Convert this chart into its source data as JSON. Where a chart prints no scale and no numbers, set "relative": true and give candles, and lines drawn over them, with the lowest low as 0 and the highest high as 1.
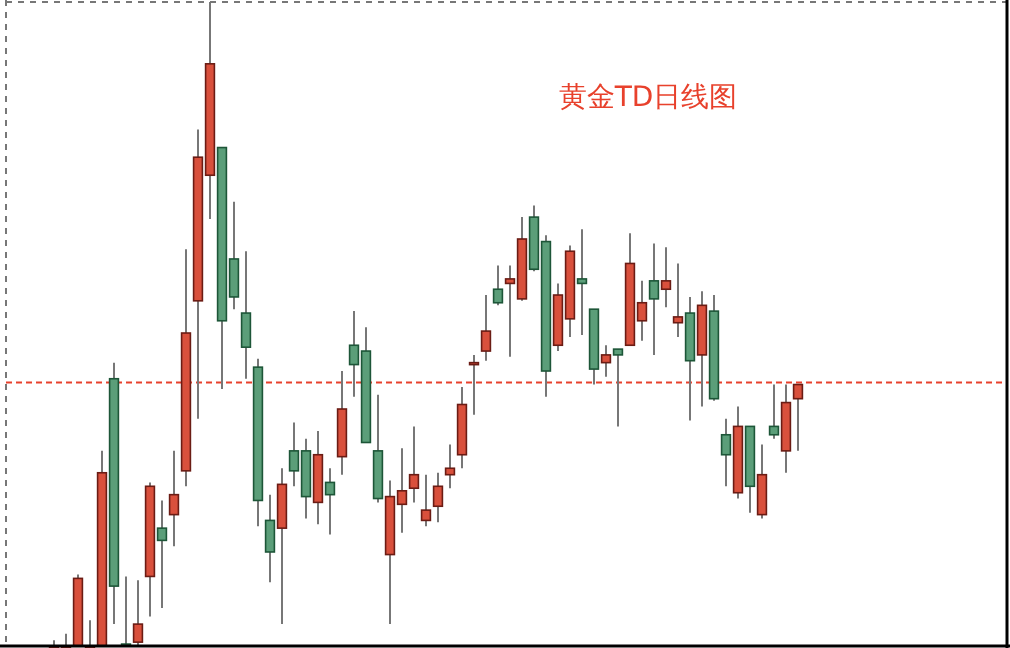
{
  "chart_data": {
    "type": "candlestick",
    "title": "黄金TD日线图",
    "relative": true,
    "categories": [
      null,
      null,
      null,
      null,
      null,
      null,
      null,
      null,
      null,
      null,
      null,
      null,
      null,
      null,
      null,
      null,
      null,
      null,
      null,
      null,
      null,
      null,
      null,
      null,
      null,
      null,
      null,
      null,
      null,
      null,
      null,
      null,
      null,
      null,
      null,
      null,
      null,
      null,
      null,
      null,
      null,
      null,
      null,
      null,
      null,
      null,
      null,
      null,
      null,
      null,
      null,
      null,
      null,
      null,
      null,
      null,
      null,
      null,
      null,
      null,
      null,
      null,
      null
    ],
    "ohlc": [
      [
        0,
        0.009,
        0,
        0
      ],
      [
        0,
        0.019,
        0,
        0
      ],
      [
        0,
        0.111,
        0,
        0.105
      ],
      [
        0,
        0.04,
        0,
        0
      ],
      [
        0,
        0.303,
        0,
        0.269
      ],
      [
        0.415,
        0.44,
        0.034,
        0.093
      ],
      [
        0.003,
        0.108,
        0,
        0
      ],
      [
        0.006,
        0.102,
        0,
        0.034
      ],
      [
        0.108,
        0.254,
        0.046,
        0.248
      ],
      [
        0.183,
        0.226,
        0.059,
        0.164
      ],
      [
        0.204,
        0.303,
        0.155,
        0.235
      ],
      [
        0.272,
        0.616,
        0.248,
        0.486
      ],
      [
        0.536,
        0.802,
        0.353,
        0.759
      ],
      [
        0.731,
        1.0,
        0.663,
        0.904
      ],
      [
        0.774,
        0.774,
        0.399,
        0.505
      ],
      [
        0.601,
        0.69,
        0.523,
        0.542
      ],
      [
        0.517,
        0.613,
        0.415,
        0.464
      ],
      [
        0.433,
        0.446,
        0.186,
        0.226
      ],
      [
        0.195,
        0.235,
        0.099,
        0.146
      ],
      [
        0.183,
        0.276,
        0.034,
        0.251
      ],
      [
        0.303,
        0.347,
        0.248,
        0.272
      ],
      [
        0.303,
        0.322,
        0.198,
        0.232
      ],
      [
        0.223,
        0.334,
        0.189,
        0.297
      ],
      [
        0.254,
        0.276,
        0.173,
        0.235
      ],
      [
        0.294,
        0.427,
        0.266,
        0.368
      ],
      [
        0.467,
        0.52,
        0.387,
        0.437
      ],
      [
        0.458,
        0.495,
        0.316,
        0.316
      ],
      [
        0.303,
        0.39,
        0.223,
        0.229
      ],
      [
        0.142,
        0.257,
        0.034,
        0.232
      ],
      [
        0.22,
        0.307,
        0.176,
        0.241
      ],
      [
        0.245,
        0.341,
        0.223,
        0.266
      ],
      [
        0.195,
        0.266,
        0.186,
        0.211
      ],
      [
        0.217,
        0.269,
        0.192,
        0.248
      ],
      [
        0.266,
        0.313,
        0.245,
        0.276
      ],
      [
        0.297,
        0.402,
        0.276,
        0.375
      ],
      [
        0.437,
        0.452,
        0.359,
        0.44
      ],
      [
        0.458,
        0.545,
        0.443,
        0.489
      ],
      [
        0.554,
        0.591,
        0.529,
        0.533
      ],
      [
        0.563,
        0.591,
        0.449,
        0.57
      ],
      [
        0.539,
        0.666,
        0.536,
        0.632
      ],
      [
        0.666,
        0.684,
        0.582,
        0.585
      ],
      [
        0.628,
        0.638,
        0.387,
        0.427
      ],
      [
        0.467,
        0.563,
        0.458,
        0.545
      ],
      [
        0.508,
        0.622,
        0.48,
        0.613
      ],
      [
        0.57,
        0.647,
        0.483,
        0.563
      ],
      [
        0.523,
        0.523,
        0.406,
        0.43
      ],
      [
        0.44,
        0.467,
        0.418,
        0.452
      ],
      [
        0.461,
        0.461,
        0.341,
        0.452
      ],
      [
        0.467,
        0.641,
        0.467,
        0.594
      ],
      [
        0.505,
        0.567,
        0.474,
        0.533
      ],
      [
        0.567,
        0.625,
        0.452,
        0.539
      ],
      [
        0.554,
        0.619,
        0.526,
        0.567
      ],
      [
        0.502,
        0.594,
        0.48,
        0.511
      ],
      [
        0.517,
        0.542,
        0.35,
        0.443
      ],
      [
        0.452,
        0.551,
        0.372,
        0.529
      ],
      [
        0.52,
        0.545,
        0.381,
        0.384
      ],
      [
        0.328,
        0.353,
        0.248,
        0.297
      ],
      [
        0.238,
        0.372,
        0.229,
        0.341
      ],
      [
        0.341,
        0.341,
        0.207,
        0.248
      ],
      [
        0.204,
        0.313,
        0.198,
        0.266
      ],
      [
        0.341,
        0.406,
        0.322,
        0.328
      ],
      [
        0.303,
        0.406,
        0.269,
        0.378
      ],
      [
        0.384,
        0.406,
        0.303,
        0.406
      ]
    ],
    "ref_lines": [
      {
        "axis": "y",
        "value": 0.409,
        "color": "#e8412c",
        "line_style": "dashed"
      }
    ]
  }
}
